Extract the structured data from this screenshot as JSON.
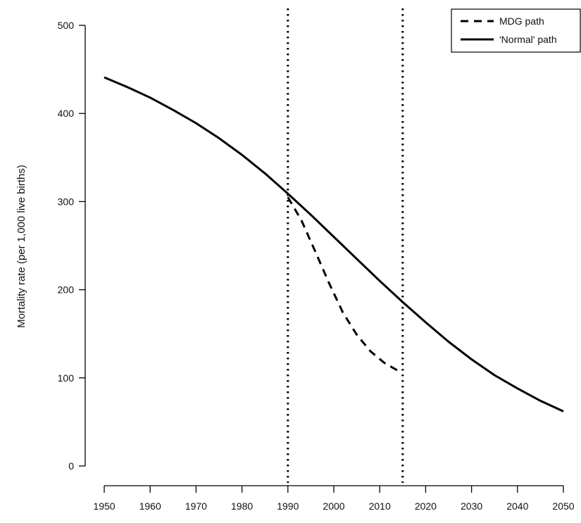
{
  "chart_data": {
    "type": "line",
    "title": "",
    "xlabel": "",
    "ylabel": "Mortality rate (per 1,000 live births)",
    "xlim": [
      1950,
      2050
    ],
    "ylim": [
      0,
      500
    ],
    "x_ticks": [
      1950,
      1960,
      1970,
      1980,
      1990,
      2000,
      2010,
      2020,
      2030,
      2040,
      2050
    ],
    "y_ticks": [
      0,
      100,
      200,
      300,
      400,
      500
    ],
    "reference_lines_x": [
      1990,
      2015
    ],
    "legend_position": "top-right",
    "series": [
      {
        "name": "MDG path",
        "line_style": "dashed",
        "color": "#000000",
        "x": [
          1990,
          1993,
          1996,
          1999,
          2002,
          2005,
          2008,
          2011,
          2014
        ],
        "y": [
          305,
          278,
          243,
          207,
          174,
          149,
          130,
          117,
          108
        ]
      },
      {
        "name": "'Normal' path",
        "line_style": "solid",
        "color": "#000000",
        "x": [
          1950,
          1955,
          1960,
          1965,
          1970,
          1975,
          1980,
          1985,
          1990,
          1995,
          2000,
          2005,
          2010,
          2015,
          2020,
          2025,
          2030,
          2035,
          2040,
          2045,
          2050
        ],
        "y": [
          441,
          430,
          418,
          404,
          389,
          372,
          353,
          332,
          309,
          285,
          260,
          235,
          210,
          186,
          163,
          141,
          121,
          103,
          88,
          74,
          62
        ]
      }
    ]
  }
}
